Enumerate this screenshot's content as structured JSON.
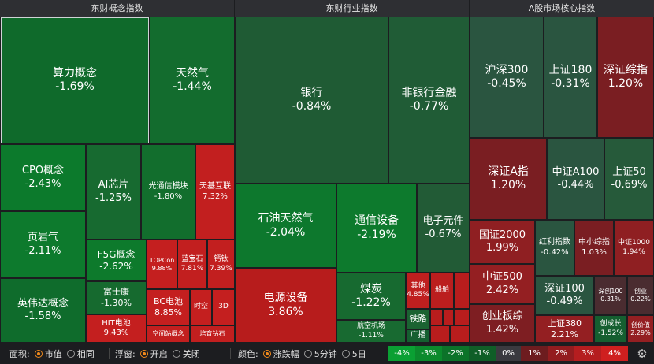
{
  "headers": [
    "东财概念指数",
    "东财行业指数",
    "A股市场核心指数"
  ],
  "tiles": [
    {
      "name": "算力概念",
      "value": "-1.69%",
      "color": "#0f6a2b",
      "sel": true
    },
    {
      "name": "天然气",
      "value": "-1.44%",
      "color": "#136c2e"
    },
    {
      "name": "CPO概念",
      "value": "-2.43%",
      "color": "#0c7a2c"
    },
    {
      "name": "页岩气",
      "value": "-2.11%",
      "color": "#0d7a2d"
    },
    {
      "name": "英伟达概念",
      "value": "-1.58%",
      "color": "#0f6c2c"
    },
    {
      "name": "AI芯片",
      "value": "-1.25%",
      "color": "#176a30"
    },
    {
      "name": "光通信模块",
      "value": "-1.80%",
      "color": "#126e2d"
    },
    {
      "name": "天基互联",
      "value": "7.32%",
      "color": "#c21f1f"
    },
    {
      "name": "F5G概念",
      "value": "-2.62%",
      "color": "#0d7a2c"
    },
    {
      "name": "富士康",
      "value": "-1.30%",
      "color": "#166a2f"
    },
    {
      "name": "TOPCon",
      "value": "9.88%",
      "color": "#c41f1f"
    },
    {
      "name": "蓝宝石",
      "value": "7.81%",
      "color": "#c21f1f"
    },
    {
      "name": "钙钛",
      "value": "7.39%",
      "color": "#c21f1f"
    },
    {
      "name": "BC电池",
      "value": "8.85%",
      "color": "#c41f1f"
    },
    {
      "name": "时空",
      "value": "",
      "color": "#c41f1f"
    },
    {
      "name": "3D",
      "value": "",
      "color": "#c41f1f"
    },
    {
      "name": "HIT电池",
      "value": "9.43%",
      "color": "#c41f1f"
    },
    {
      "name": "空间站概念",
      "value": "",
      "color": "#c21f1f"
    },
    {
      "name": "培育钻石",
      "value": "",
      "color": "#c21f1f"
    },
    {
      "name": "银行",
      "value": "-0.84%",
      "color": "#1f5b34"
    },
    {
      "name": "非银行金融",
      "value": "-0.77%",
      "color": "#205c36"
    },
    {
      "name": "石油天然气",
      "value": "-2.04%",
      "color": "#0d782d"
    },
    {
      "name": "通信设备",
      "value": "-2.19%",
      "color": "#0d7a2d"
    },
    {
      "name": "电子元件",
      "value": "-0.67%",
      "color": "#225b36"
    },
    {
      "name": "电源设备",
      "value": "3.86%",
      "color": "#b71c1c"
    },
    {
      "name": "煤炭",
      "value": "-1.22%",
      "color": "#176a30"
    },
    {
      "name": "其他",
      "value": "4.85%",
      "color": "#bf1f1f"
    },
    {
      "name": "船舶",
      "value": "",
      "color": "#bb1e1e"
    },
    {
      "name": "航空机场",
      "value": "-1.11%",
      "color": "#186a31"
    },
    {
      "name": "铁路",
      "value": "",
      "color": "#1b6332"
    },
    {
      "name": "广播",
      "value": "",
      "color": "#155f30"
    },
    {
      "name": "",
      "value": "",
      "color": "#b81d1d"
    },
    {
      "name": "",
      "value": "",
      "color": "#b81d1d"
    },
    {
      "name": "",
      "value": "",
      "color": "#b81d1d"
    },
    {
      "name": "",
      "value": "",
      "color": "#b81d1d"
    },
    {
      "name": "",
      "value": "",
      "color": "#b81d1d"
    },
    {
      "name": "",
      "value": "",
      "color": "#b81d1d"
    },
    {
      "name": "沪深300",
      "value": "-0.45%",
      "color": "#2a5540"
    },
    {
      "name": "上证180",
      "value": "-0.31%",
      "color": "#2a5540"
    },
    {
      "name": "深证综指",
      "value": "1.20%",
      "color": "#7a1e22"
    },
    {
      "name": "深证A指",
      "value": "1.20%",
      "color": "#7a1e22"
    },
    {
      "name": "中证A100",
      "value": "-0.44%",
      "color": "#2a5540"
    },
    {
      "name": "上证50",
      "value": "-0.69%",
      "color": "#265a3a"
    },
    {
      "name": "国证2000",
      "value": "1.99%",
      "color": "#8f1f22"
    },
    {
      "name": "红利指数",
      "value": "-0.42%",
      "color": "#2a5540"
    },
    {
      "name": "中小综指",
      "value": "1.03%",
      "color": "#7a1e22"
    },
    {
      "name": "中证1000",
      "value": "1.94%",
      "color": "#8f1f22"
    },
    {
      "name": "中证500",
      "value": "2.42%",
      "color": "#941f22"
    },
    {
      "name": "深证100",
      "value": "-0.49%",
      "color": "#2a5540"
    },
    {
      "name": "深创100",
      "value": "0.31%",
      "color": "#4a2c30"
    },
    {
      "name": "创业",
      "value": "0.22%",
      "color": "#4a2c30"
    },
    {
      "name": "创业板综",
      "value": "1.42%",
      "color": "#7e1e22"
    },
    {
      "name": "上证380",
      "value": "2.21%",
      "color": "#941f22"
    },
    {
      "name": "创成长",
      "value": "-1.52%",
      "color": "#155f30"
    },
    {
      "name": "创价值",
      "value": "2.29%",
      "color": "#941f22"
    }
  ],
  "toolbar": {
    "area_label": "面积:",
    "area_options": [
      "市值",
      "相同"
    ],
    "float_label": "浮窗:",
    "float_options": [
      "开启",
      "关闭"
    ],
    "color_label": "颜色:",
    "color_options": [
      "涨跌幅",
      "5分钟",
      "5日"
    ],
    "legend": [
      "-4%",
      "-3%",
      "-2%",
      "-1%",
      "0%",
      "1%",
      "2%",
      "3%",
      "4%"
    ],
    "legend_colors": [
      "#0aa033",
      "#0b8a2c",
      "#0c7329",
      "#0f5e27",
      "#3a3a3f",
      "#6d1c1f",
      "#931c1f",
      "#b51d1f",
      "#cf1f1f"
    ]
  },
  "icons": {
    "settings": "gear-icon"
  }
}
